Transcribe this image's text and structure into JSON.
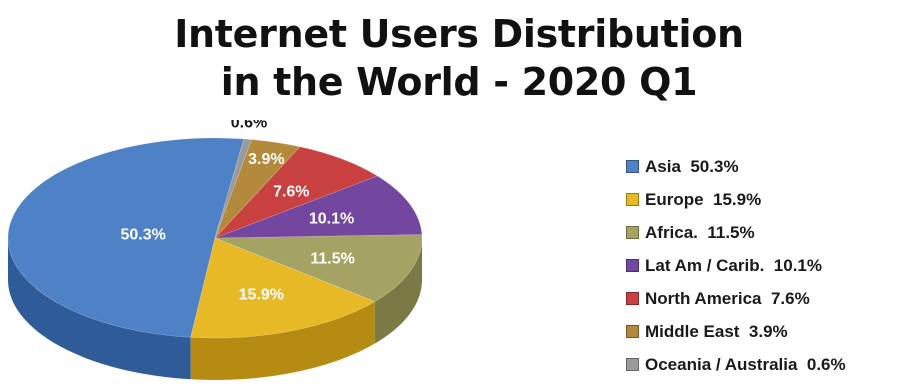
{
  "chart_data": {
    "type": "pie",
    "title_lines": [
      "Internet Users Distribution",
      "in the World - 2020 Q1"
    ],
    "slices": [
      {
        "name": "Asia",
        "value": 50.3,
        "label": "50.3%",
        "legend": "Asia  50.3%",
        "color": "#4f81c6",
        "side": "#2f5b98"
      },
      {
        "name": "Europe",
        "value": 15.9,
        "label": "15.9%",
        "legend": "Europe  15.9%",
        "color": "#e8b927",
        "side": "#b58b12"
      },
      {
        "name": "Africa.",
        "value": 11.5,
        "label": "11.5%",
        "legend": "Africa.  11.5%",
        "color": "#a4a364",
        "side": "#7b7a45"
      },
      {
        "name": "Lat Am / Carib.",
        "value": 10.1,
        "label": "10.1%",
        "legend": "Lat Am / Carib.  10.1%",
        "color": "#7346a0",
        "side": "#4f2e75"
      },
      {
        "name": "North America",
        "value": 7.6,
        "label": "7.6%",
        "legend": "North America  7.6%",
        "color": "#c84040",
        "side": "#8f2828"
      },
      {
        "name": "Middle East",
        "value": 3.9,
        "label": "3.9%",
        "legend": "Middle East  3.9%",
        "color": "#b38a3c",
        "side": "#7f6128"
      },
      {
        "name": "Oceania / Australia",
        "value": 0.6,
        "label": "0.6%",
        "legend": "Oceania / Australia  0.6%",
        "color": "#9a9a9a",
        "side": "#6e6e6e"
      }
    ],
    "legend_position": "right"
  }
}
